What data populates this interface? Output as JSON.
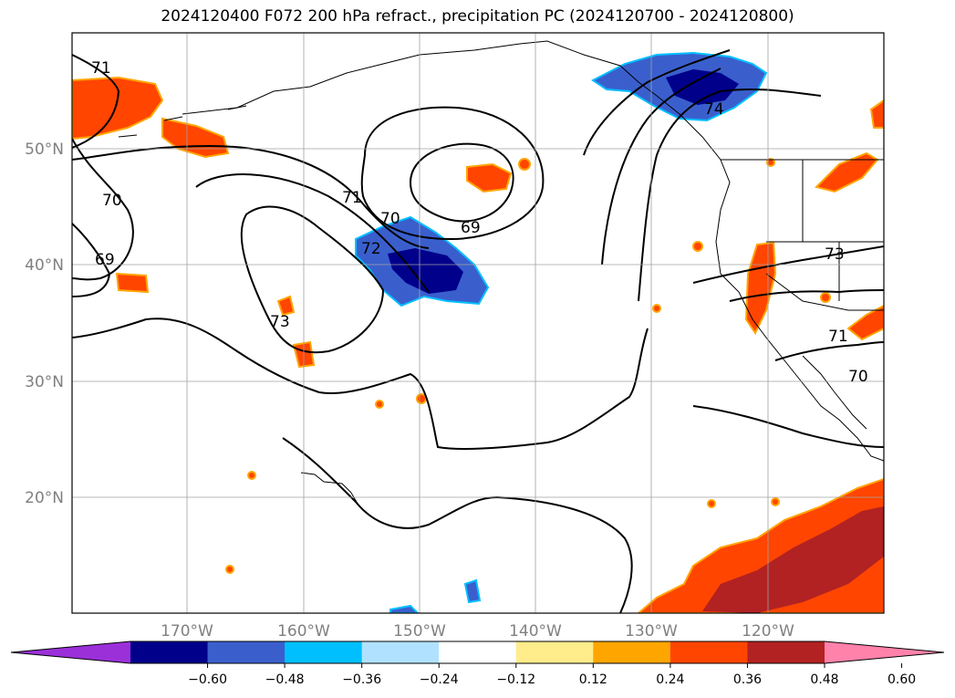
{
  "title": "2024120400 F072 200 hPa refract., precipitation PC (2024120700 - 2024120800)",
  "lat_labels": [
    "50°N",
    "40°N",
    "30°N",
    "20°N"
  ],
  "lon_labels": [
    "170°W",
    "160°W",
    "150°W",
    "140°W",
    "130°W",
    "120°W"
  ],
  "contour_labels": [
    "71",
    "70",
    "69",
    "71",
    "70",
    "69",
    "72",
    "73",
    "74",
    "73",
    "71",
    "70"
  ],
  "colorbar": {
    "ticks": [
      "−0.60",
      "−0.48",
      "−0.36",
      "−0.24",
      "−0.12",
      "0.12",
      "0.24",
      "0.36",
      "0.48",
      "0.60"
    ],
    "colors": [
      "#9b30d9",
      "#00008b",
      "#3a5fcd",
      "#00bfff",
      "#b0e2ff",
      "#ffffff",
      "#ffec8b",
      "#ffa500",
      "#ff4500",
      "#b22222",
      "#ff82ab"
    ]
  },
  "colors": {
    "positive_main": "#ff4500",
    "positive_strong": "#b22222",
    "positive_edge": "#ffa500",
    "positive_light": "#ffec8b",
    "negative_main": "#3a5fcd",
    "negative_strong": "#00008b",
    "negative_edge": "#00bfff"
  }
}
